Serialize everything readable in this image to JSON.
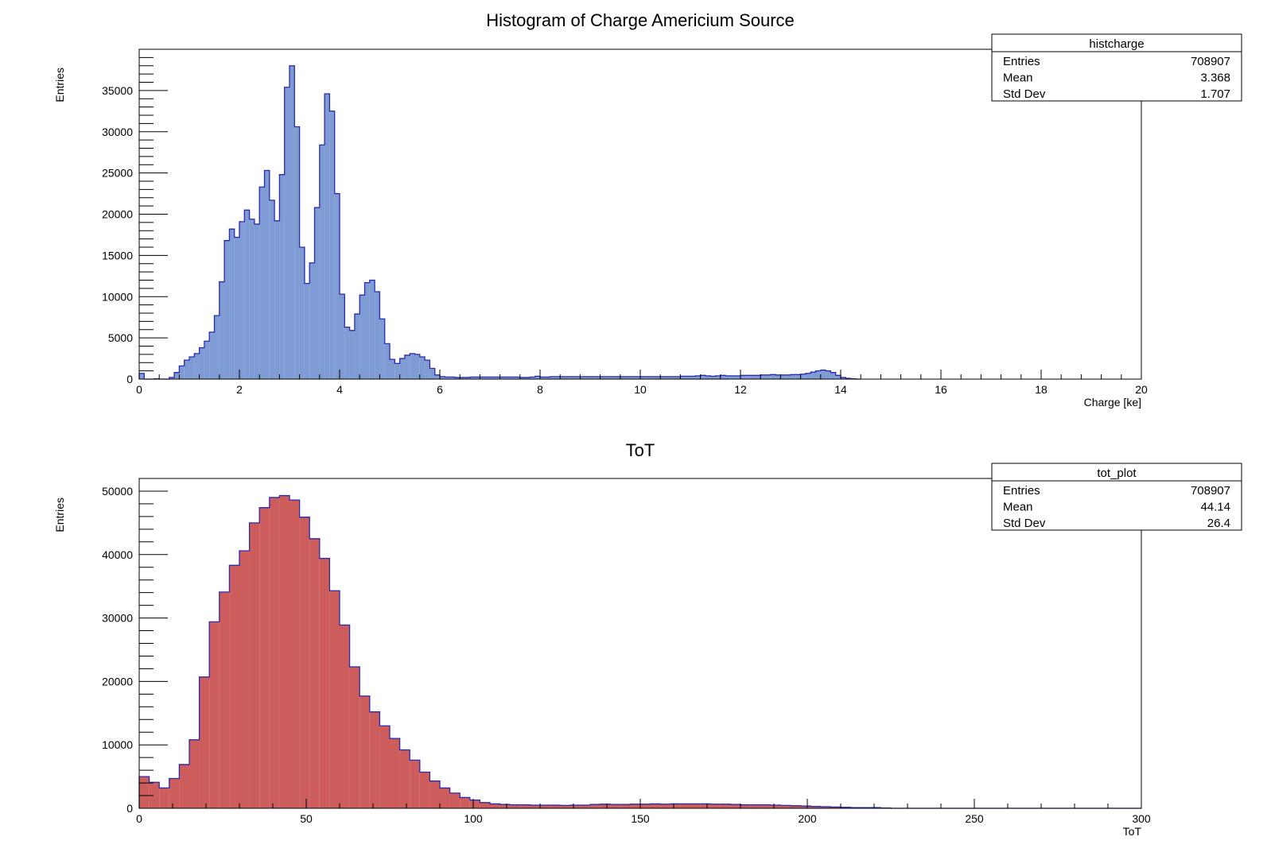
{
  "chart_data": [
    {
      "type": "bar",
      "name": "histcharge",
      "title": "Histogram of Charge Americium Source",
      "xlabel": "Charge [ke]",
      "ylabel": "Entries",
      "xlim": [
        0,
        20
      ],
      "ylim": [
        0,
        40000
      ],
      "xticks": [
        0,
        2,
        4,
        6,
        8,
        10,
        12,
        14,
        16,
        18,
        20
      ],
      "yticks": [
        0,
        5000,
        10000,
        15000,
        20000,
        25000,
        30000,
        35000
      ],
      "bin_width": 0.1,
      "fill_color": "#7f9bd4",
      "line_color": "#2a2ab0",
      "values": [
        700,
        0,
        0,
        50,
        0,
        0,
        200,
        800,
        1600,
        2300,
        2700,
        3100,
        3800,
        4600,
        5700,
        7700,
        11800,
        16800,
        18200,
        17200,
        19100,
        20500,
        19400,
        18800,
        23300,
        25300,
        21700,
        19200,
        24800,
        35400,
        38000,
        30600,
        16000,
        11600,
        14100,
        20800,
        28400,
        34600,
        32500,
        22500,
        10300,
        6300,
        5900,
        7900,
        10200,
        11700,
        12000,
        10600,
        7300,
        4300,
        2400,
        1900,
        2500,
        2900,
        3100,
        3000,
        2700,
        2300,
        1300,
        500,
        300,
        250,
        250,
        200,
        200,
        200,
        250,
        250,
        250,
        250,
        250,
        250,
        250,
        250,
        250,
        250,
        200,
        200,
        250,
        350,
        250,
        250,
        300,
        300,
        300,
        300,
        300,
        300,
        300,
        300,
        300,
        300,
        300,
        300,
        300,
        300,
        300,
        300,
        300,
        300,
        300,
        300,
        300,
        300,
        300,
        300,
        300,
        300,
        350,
        350,
        350,
        400,
        450,
        400,
        350,
        400,
        450,
        400,
        400,
        400,
        450,
        450,
        450,
        450,
        500,
        500,
        550,
        500,
        500,
        500,
        550,
        550,
        600,
        700,
        850,
        1000,
        1100,
        1000,
        800,
        450,
        200,
        100,
        50,
        0
      ],
      "stats": {
        "name": "histcharge",
        "rows": [
          {
            "label": "Entries",
            "value": "708907"
          },
          {
            "label": "Mean",
            "value": "3.368"
          },
          {
            "label": "Std Dev",
            "value": "1.707"
          }
        ]
      }
    },
    {
      "type": "bar",
      "name": "tot_plot",
      "title": "ToT",
      "xlabel": "ToT",
      "ylabel": "Entries",
      "xlim": [
        0,
        300
      ],
      "ylim": [
        0,
        52000
      ],
      "xticks": [
        0,
        50,
        100,
        150,
        200,
        250,
        300
      ],
      "yticks": [
        0,
        10000,
        20000,
        30000,
        40000,
        50000
      ],
      "bin_width": 3,
      "fill_color": "#cd5c5c",
      "line_color": "#2a2ab0",
      "values": [
        5000,
        4100,
        3200,
        4700,
        6900,
        10800,
        20700,
        29400,
        34100,
        38300,
        40600,
        45000,
        47400,
        49000,
        49300,
        48600,
        45900,
        42500,
        39400,
        34300,
        28900,
        22300,
        17700,
        15200,
        13000,
        11000,
        9200,
        7600,
        5700,
        4300,
        3200,
        2400,
        1700,
        1300,
        900,
        700,
        600,
        550,
        550,
        500,
        500,
        500,
        450,
        500,
        500,
        600,
        650,
        600,
        600,
        650,
        650,
        700,
        650,
        700,
        700,
        700,
        700,
        650,
        650,
        600,
        550,
        550,
        550,
        500,
        450,
        400,
        350,
        300,
        250,
        200,
        150,
        100,
        100,
        100,
        50,
        0,
        0,
        0,
        0,
        0,
        0,
        0,
        0,
        0,
        0,
        0,
        0,
        0,
        0,
        0,
        0,
        0,
        0,
        0,
        0,
        0,
        0,
        0,
        0,
        0
      ],
      "stats": {
        "name": "tot_plot",
        "rows": [
          {
            "label": "Entries",
            "value": "708907"
          },
          {
            "label": "Mean",
            "value": "44.14"
          },
          {
            "label": "Std Dev",
            "value": "26.4"
          }
        ]
      }
    }
  ]
}
